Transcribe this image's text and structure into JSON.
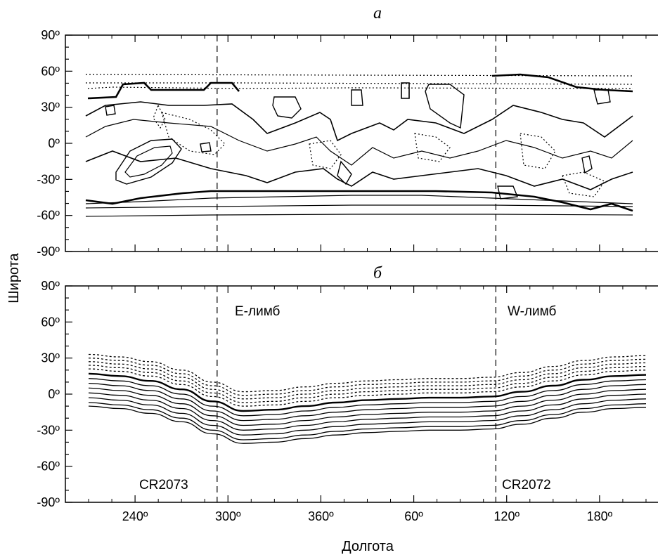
{
  "ylabel": "Широта",
  "xlabel": "Долгота",
  "chart_data": [
    {
      "panel": "а",
      "type": "contour",
      "ytick_labels": [
        "90º",
        "60º",
        "30º",
        "0º",
        "-30º",
        "-60º",
        "-90º"
      ],
      "ylim": [
        -90,
        90
      ],
      "limb_lines": [
        293,
        473
      ],
      "grid": false
    },
    {
      "panel": "б",
      "type": "line",
      "xtick_labels": [
        "240º",
        "300º",
        "360º",
        "60º",
        "120º",
        "180º"
      ],
      "ytick_labels": [
        "90º",
        "60º",
        "30º",
        "0º",
        "-30º",
        "-60º",
        "-90º"
      ],
      "ylim": [
        -90,
        90
      ],
      "limb_lines": [
        293,
        473
      ],
      "annotations": {
        "e_limb": "E-лимб",
        "w_limb": "W-лимб",
        "cr_left": "CR2073",
        "cr_right": "CR2072"
      },
      "x": [
        210,
        230,
        250,
        270,
        290,
        310,
        330,
        350,
        370,
        390,
        410,
        430,
        450,
        470,
        490,
        510,
        530,
        550,
        570
      ],
      "base_curve": [
        17,
        15,
        11,
        4,
        -6,
        -14,
        -13,
        -10,
        -7,
        -5,
        -4,
        -3,
        -3,
        -2,
        2,
        7,
        12,
        15,
        16
      ],
      "series": [
        {
          "offset": 16,
          "style": "dotted"
        },
        {
          "offset": 13,
          "style": "dotted"
        },
        {
          "offset": 10,
          "style": "dotted"
        },
        {
          "offset": 7,
          "style": "dotted"
        },
        {
          "offset": 4,
          "style": "dotted"
        },
        {
          "offset": 0,
          "style": "solid"
        },
        {
          "offset": -4,
          "style": "solid"
        },
        {
          "offset": -8,
          "style": "solid"
        },
        {
          "offset": -12,
          "style": "solid"
        },
        {
          "offset": -16,
          "style": "solid"
        },
        {
          "offset": -20,
          "style": "solid"
        },
        {
          "offset": -24,
          "style": "solid"
        },
        {
          "offset": -27,
          "style": "solid"
        }
      ]
    }
  ]
}
